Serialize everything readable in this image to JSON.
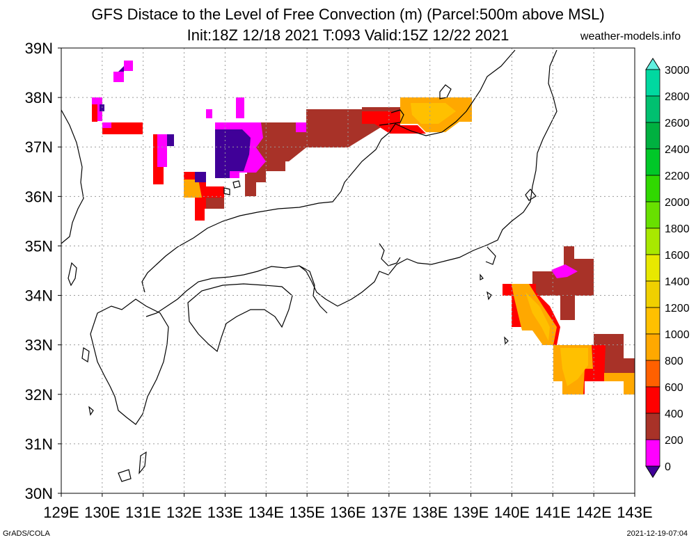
{
  "title": {
    "line1": "GFS Distace to the Level of Free Convection (m) (Parcel:500m above MSL)",
    "line2": "Init:18Z 12/18 2021 T:093 Valid:15Z 12/22 2021"
  },
  "site": "weather-models.info",
  "footer": {
    "left": "GrADS/COLA",
    "right": "2021-12-19-07:04"
  },
  "map": {
    "lon_labels": [
      "129E",
      "130E",
      "131E",
      "132E",
      "133E",
      "134E",
      "135E",
      "136E",
      "137E",
      "138E",
      "139E",
      "140E",
      "141E",
      "142E",
      "143E"
    ],
    "lat_labels": [
      "39N",
      "38N",
      "37N",
      "36N",
      "35N",
      "34N",
      "33N",
      "32N",
      "31N",
      "30N"
    ]
  },
  "colorbar": {
    "levels": [
      "3000",
      "2800",
      "2600",
      "2400",
      "2200",
      "2000",
      "1800",
      "1600",
      "1400",
      "1200",
      "1000",
      "800",
      "600",
      "400",
      "200",
      "0"
    ],
    "colors": [
      "#00e8d0",
      "#00d8a0",
      "#00c070",
      "#00b040",
      "#00c828",
      "#30d800",
      "#68e000",
      "#a8e800",
      "#e8e800",
      "#f0d000",
      "#ffc000",
      "#ffa800",
      "#ff6000",
      "#ff0000",
      "#a83228",
      "#ff00ff",
      "#400098"
    ],
    "over_color": "#60f0e0",
    "under_color": "#400098"
  },
  "colors": {
    "purple": "#400098",
    "magenta": "#ff00ff",
    "brown": "#a83228",
    "red": "#ff0000",
    "orange": "#ffa800",
    "gold": "#ffc000"
  }
}
